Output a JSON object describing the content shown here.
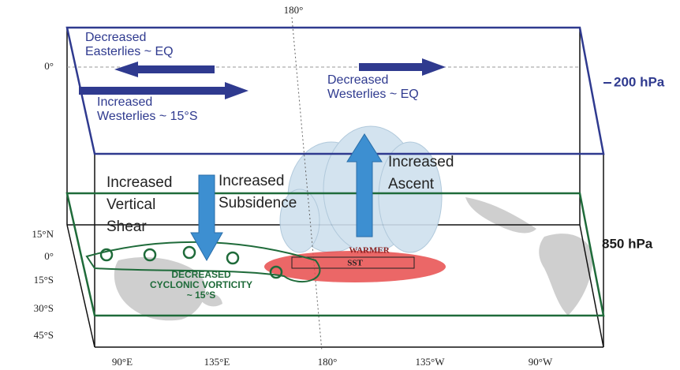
{
  "top_meridian": "180°",
  "upper_level": {
    "equator": "0°",
    "label": "200 hPa",
    "decreased_easterlies": [
      "Decreased",
      "Easterlies ~ EQ"
    ],
    "increased_westerlies": [
      "Increased",
      "Westerlies ~ 15°S"
    ],
    "decreased_westerlies": [
      "Decreased",
      "Westerlies ~ EQ"
    ]
  },
  "lower_level": {
    "label": "850 hPa",
    "vertical_shear": [
      "Increased",
      "Vertical",
      "Shear"
    ],
    "subsidence": [
      "Increased",
      "Subsidence"
    ],
    "ascent": [
      "Increased",
      "Ascent"
    ],
    "sst": [
      "WARMER",
      "SST"
    ],
    "vorticity": [
      "DECREASED",
      "CYCLONIC VORTICITY",
      "~ 15°S"
    ]
  },
  "latitudes": [
    "15°N",
    "0°",
    "15°S",
    "30°S",
    "45°S"
  ],
  "longitudes": [
    "90°E",
    "135°E",
    "180°",
    "135°W",
    "90°W"
  ]
}
